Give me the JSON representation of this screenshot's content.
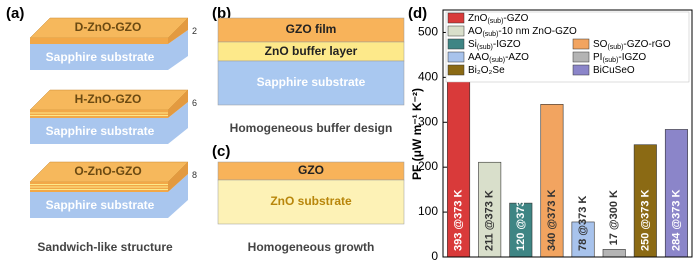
{
  "panel_a": {
    "label": "(a)",
    "slabs": [
      {
        "film": "D-ZnO-GZO",
        "substrate": "Sapphire substrate",
        "layers": "2"
      },
      {
        "film": "H-ZnO-GZO",
        "substrate": "Sapphire substrate",
        "layers": "6"
      },
      {
        "film": "O-ZnO-GZO",
        "substrate": "Sapphire substrate",
        "layers": "8"
      }
    ],
    "caption": "Sandwich-like structure"
  },
  "panel_b": {
    "label": "(b)",
    "layers": [
      "GZO film",
      "ZnO buffer layer",
      "Sapphire substrate"
    ],
    "caption": "Homogeneous buffer design"
  },
  "panel_c": {
    "label": "(c)",
    "layers": [
      "GZO",
      "ZnO substrate"
    ],
    "caption": "Homogeneous growth"
  },
  "chart_data": {
    "type": "bar",
    "panel_label": "(d)",
    "y_label": "PF (μW m⁻¹ K⁻²)",
    "ylim": [
      0,
      550
    ],
    "yticks": [
      0,
      100,
      200,
      300,
      400,
      500
    ],
    "series": [
      {
        "name": "ZnO(sub)-GZO",
        "color": "#d93a3a",
        "values": [
          393
        ],
        "value_labels": [
          "393 @373 K"
        ]
      },
      {
        "name": "AO(sub)-10 nm ZnO-GZO",
        "color": "#d9dfcb",
        "values": [
          211
        ],
        "value_labels": [
          "211 @373 K"
        ]
      },
      {
        "name": "Si(sub)-IGZO",
        "color": "#3e8584",
        "values": [
          120
        ],
        "value_labels": [
          "120 @373 K"
        ]
      },
      {
        "name": "SO(sub)-GZO-rGO",
        "color": "#f2a460",
        "values": [
          340
        ],
        "value_labels": [
          "340 @373 K"
        ]
      },
      {
        "name": "AAO(sub)-AZO",
        "color": "#a8c3ec",
        "values": [
          78
        ],
        "value_labels": [
          "78 @373 K"
        ]
      },
      {
        "name": "PI(sub)-IGZO",
        "color": "#b4b4b4",
        "values": [
          17
        ],
        "value_labels": [
          "17 @300 K"
        ]
      },
      {
        "name": "Bi₂O₂Se",
        "color": "#8b6a14",
        "values": [
          250
        ],
        "value_labels": [
          "250 @373 K"
        ]
      },
      {
        "name": "BiCuSeO",
        "color": "#8b85c9",
        "values": [
          284
        ],
        "value_labels": [
          "284 @373 K"
        ]
      }
    ]
  }
}
